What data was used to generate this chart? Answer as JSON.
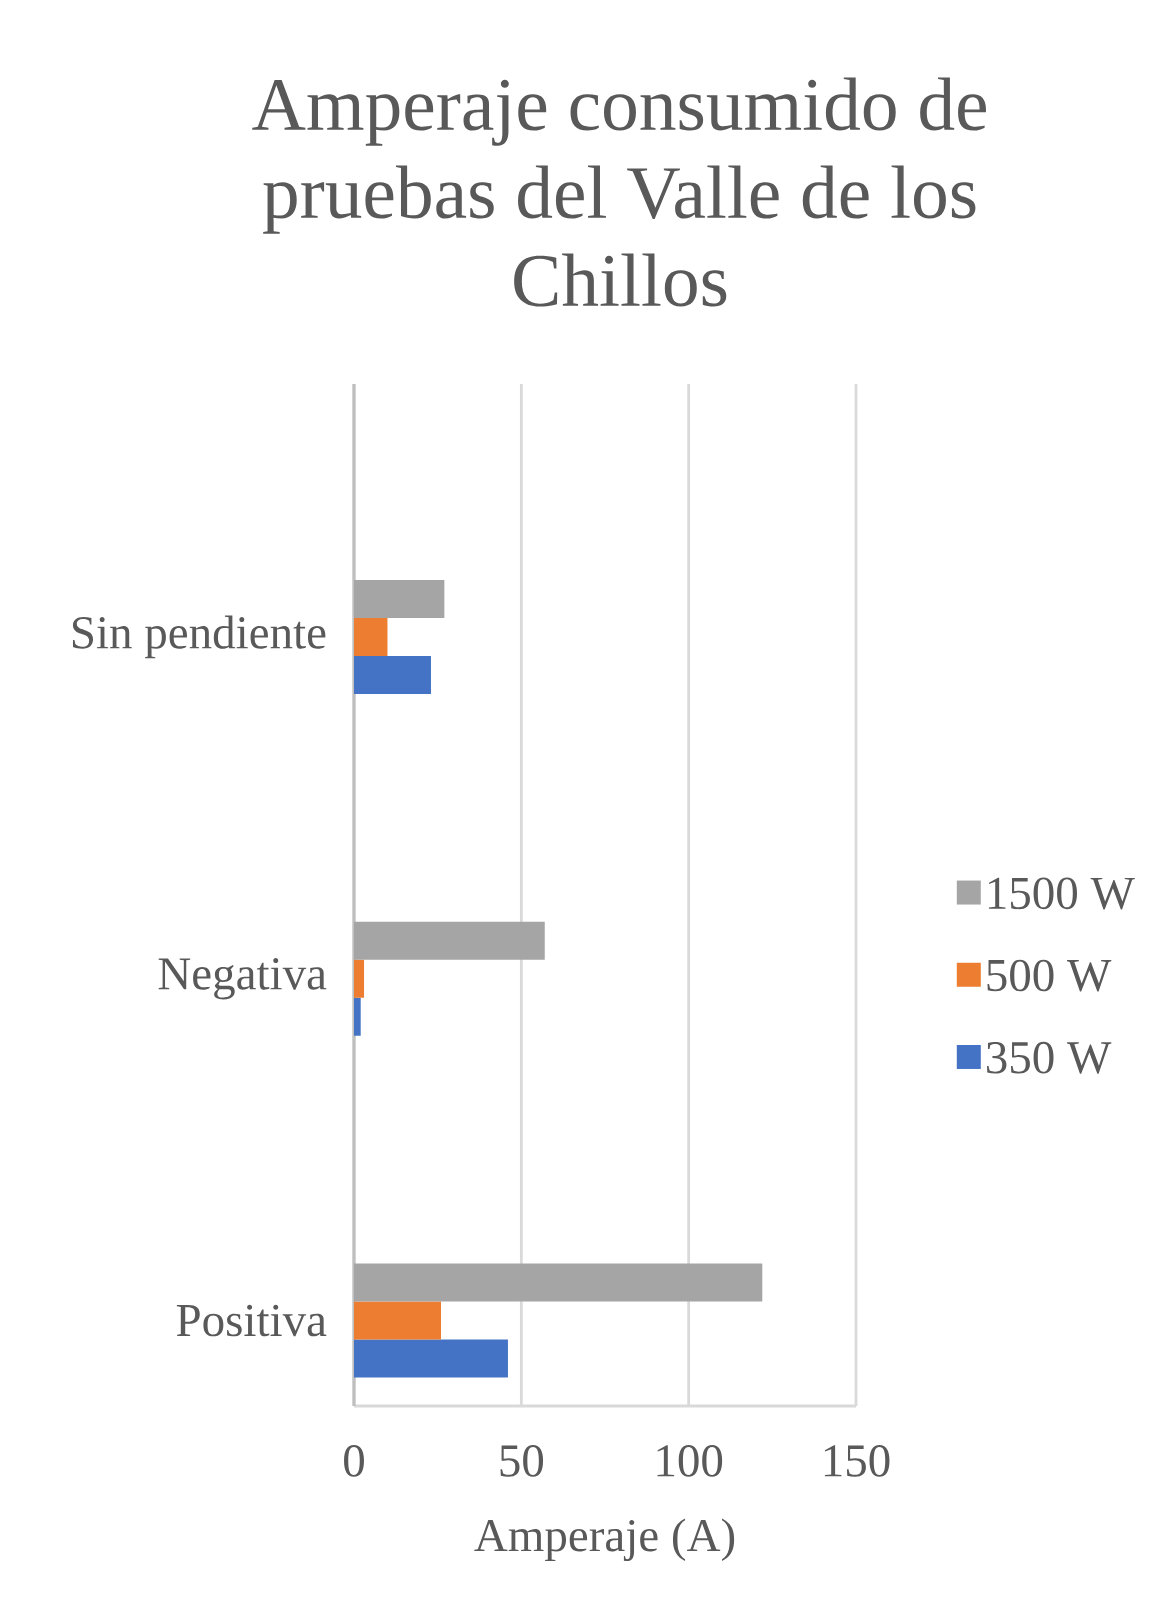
{
  "chart_data": {
    "type": "bar",
    "orientation": "horizontal",
    "title": "Amperaje consumido de pruebas del Valle de los Chillos",
    "xlabel": "Amperaje (A)",
    "categories": [
      "Sin pendiente",
      "Negativa",
      "Positiva"
    ],
    "series": [
      {
        "name": "350 W",
        "color": "#4472c4",
        "values": [
          23,
          2,
          46
        ]
      },
      {
        "name": "500 W",
        "color": "#ed7d31",
        "values": [
          10,
          3,
          26
        ]
      },
      {
        "name": "1500 W",
        "color": "#a5a5a5",
        "values": [
          27,
          57,
          122
        ]
      }
    ],
    "xlim": [
      0,
      150
    ],
    "xticks": [
      0,
      50,
      100,
      150
    ],
    "grid": "x",
    "legend": "right"
  }
}
